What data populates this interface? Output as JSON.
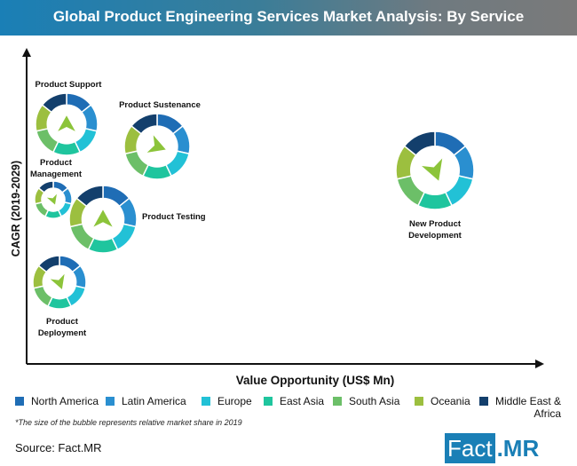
{
  "header": {
    "title": "Global Product Engineering Services Market Analysis: By Service"
  },
  "chart_data": {
    "type": "bubble-donut",
    "title": "Global Product Engineering Services Market Analysis: By Service",
    "xlabel": "Value Opportunity (US$ Mn)",
    "ylabel": "CAGR (2019-2029)",
    "grid": false,
    "legend_placement": "bottom",
    "regions": [
      {
        "name": "North America",
        "color": "#1f6db5"
      },
      {
        "name": "Latin America",
        "color": "#2a8fd0"
      },
      {
        "name": "Europe",
        "color": "#22c1d6"
      },
      {
        "name": "East Asia",
        "color": "#1fc59e"
      },
      {
        "name": "South Asia",
        "color": "#6cbf68"
      },
      {
        "name": "Oceania",
        "color": "#9cbf3f"
      },
      {
        "name": "Middle East & Africa",
        "color": "#133f6c"
      }
    ],
    "bubbles": [
      {
        "label": [
          "Product Support"
        ],
        "trend": "up"
      },
      {
        "label": [
          "Product Sustenance"
        ],
        "trend": "right"
      },
      {
        "label": [
          "Product",
          "Management"
        ],
        "trend": "down"
      },
      {
        "label": [
          "Product Testing"
        ],
        "trend": "up"
      },
      {
        "label": [
          "Product",
          "Deployment"
        ],
        "trend": "down"
      },
      {
        "label": [
          "New Product",
          "Development"
        ],
        "trend": "down"
      }
    ],
    "arrow_color": "#8cc43a"
  },
  "legend_items": [
    "North America",
    "Latin America",
    "Europe",
    "East Asia",
    "South Asia",
    "Oceania",
    "Middle East &",
    "Africa"
  ],
  "footnote": "*The size of the bubble represents relative market share in 2019",
  "source": "Source: Fact.MR",
  "logo": {
    "part1": "Fact",
    "part2": ".MR"
  }
}
